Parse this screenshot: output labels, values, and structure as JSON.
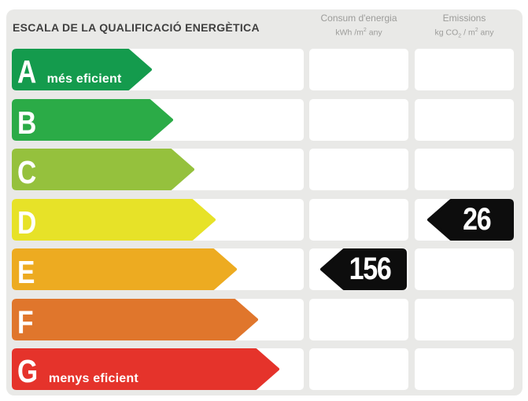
{
  "title": "ESCALA DE LA QUALIFICACIÓ ENERGÈTICA",
  "columns": {
    "consum": {
      "title": "Consum d'energia",
      "u1": "kWh /m",
      "u1sup": "2",
      "u2": "  any"
    },
    "emissions": {
      "title": "Emissions",
      "u1": "kg CO",
      "u1sub": "2",
      "u2": " / m",
      "u2sup": "2",
      "u3": "  any"
    }
  },
  "ratings": [
    {
      "letter": "A",
      "note": "més eficient",
      "color": "#149b4d",
      "arrow_w": 178
    },
    {
      "letter": "B",
      "note": "",
      "color": "#2bab47",
      "arrow_w": 205
    },
    {
      "letter": "C",
      "note": "",
      "color": "#95c13d",
      "arrow_w": 232
    },
    {
      "letter": "D",
      "note": "",
      "color": "#e7e228",
      "arrow_w": 259
    },
    {
      "letter": "E",
      "note": "",
      "color": "#edab21",
      "arrow_w": 286
    },
    {
      "letter": "F",
      "note": "",
      "color": "#e0762c",
      "arrow_w": 313
    },
    {
      "letter": "G",
      "note": "menys eficient",
      "color": "#e5332b",
      "arrow_w": 340
    }
  ],
  "values": {
    "marker_color": "#0d0d0d",
    "consum": {
      "value": "156",
      "class": "E"
    },
    "emissions": {
      "value": "26",
      "class": "D"
    }
  },
  "chart_data": {
    "type": "bar",
    "title": "ESCALA DE LA QUALIFICACIÓ ENERGÈTICA",
    "categories": [
      "A",
      "B",
      "C",
      "D",
      "E",
      "F",
      "G"
    ],
    "bar_colors": [
      "#149b4d",
      "#2bab47",
      "#95c13d",
      "#e7e228",
      "#edab21",
      "#e0762c",
      "#e5332b"
    ],
    "bar_relative_lengths": [
      178,
      205,
      232,
      259,
      286,
      313,
      340
    ],
    "category_notes": {
      "A": "més eficient",
      "G": "menys eficient"
    },
    "annotations": [
      {
        "column": "Consum d'energia (kWh/m2 any)",
        "value": 156,
        "class": "E"
      },
      {
        "column": "Emissions (kg CO2/m2 any)",
        "value": 26,
        "class": "D"
      }
    ],
    "legend_position": "none",
    "grid": false
  }
}
